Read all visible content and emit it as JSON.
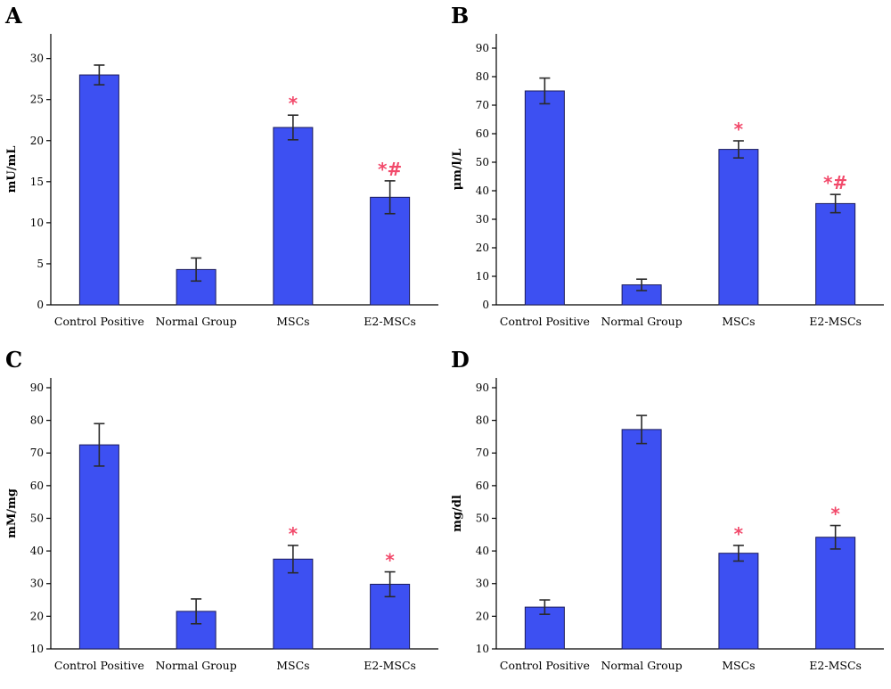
{
  "colors": {
    "bar": "#3d50f2",
    "bar_stroke": "#1b1b5a",
    "error_bar": "#2a2a2a",
    "significance": "#f24a6b",
    "axis": "#000000"
  },
  "chart_data": [
    {
      "type": "bar",
      "panel_label": "A",
      "categories": [
        "Control Positive",
        "Normal Group",
        "MSCs",
        "E2-MSCs"
      ],
      "values": [
        28,
        4.3,
        21.6,
        13.1
      ],
      "errors": [
        1.2,
        1.4,
        1.5,
        2.0
      ],
      "significance": [
        "",
        "",
        "*",
        "*#"
      ],
      "ylabel": "mU/mL",
      "ylim": [
        0,
        33
      ],
      "yticks": [
        0,
        5,
        10,
        15,
        20,
        25,
        30
      ]
    },
    {
      "type": "bar",
      "panel_label": "B",
      "categories": [
        "Control Positive",
        "Normal Group",
        "MSCs",
        "E2-MSCs"
      ],
      "values": [
        75,
        7,
        54.5,
        35.5
      ],
      "errors": [
        4.5,
        2.0,
        3.0,
        3.2
      ],
      "significance": [
        "",
        "",
        "*",
        "*#"
      ],
      "ylabel": "μm/l/L",
      "ylim": [
        0,
        95
      ],
      "yticks": [
        0,
        10,
        20,
        30,
        40,
        50,
        60,
        70,
        80,
        90
      ]
    },
    {
      "type": "bar",
      "panel_label": "C",
      "categories": [
        "Control Positive",
        "Normal Group",
        "MSCs",
        "E2-MSCs"
      ],
      "values": [
        72.5,
        21.5,
        37.5,
        29.8
      ],
      "errors": [
        6.5,
        3.8,
        4.2,
        3.8
      ],
      "significance": [
        "",
        "",
        "*",
        "*"
      ],
      "ylabel": "mM/mg",
      "ylim": [
        10,
        93
      ],
      "yticks": [
        10,
        20,
        30,
        40,
        50,
        60,
        70,
        80,
        90
      ]
    },
    {
      "type": "bar",
      "panel_label": "D",
      "categories": [
        "Control Positive",
        "Normal Group",
        "MSCs",
        "E2-MSCs"
      ],
      "values": [
        22.8,
        77.2,
        39.3,
        44.2
      ],
      "errors": [
        2.2,
        4.3,
        2.4,
        3.6
      ],
      "significance": [
        "",
        "",
        "*",
        "*"
      ],
      "ylabel": "mg/dl",
      "ylim": [
        10,
        93
      ],
      "yticks": [
        10,
        20,
        30,
        40,
        50,
        60,
        70,
        80,
        90
      ]
    }
  ]
}
